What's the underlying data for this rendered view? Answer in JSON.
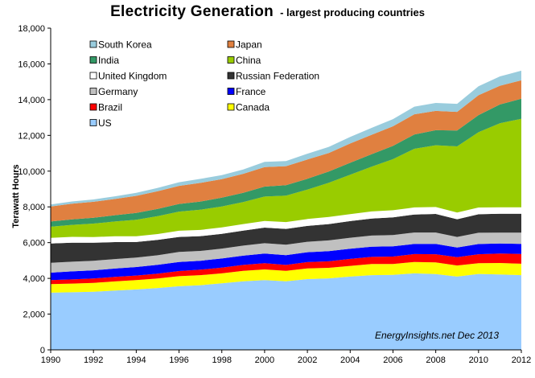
{
  "title": "Electricity  Generation",
  "subtitle": "- largest producing countries",
  "credit": "EnergyInsights.net  Dec 2013",
  "chart_data": {
    "type": "area",
    "stacked": true,
    "ylabel": "Terawatt Hours",
    "xlabel": "",
    "x": [
      1990,
      1991,
      1992,
      1993,
      1994,
      1995,
      1996,
      1997,
      1998,
      1999,
      2000,
      2001,
      2002,
      2003,
      2004,
      2005,
      2006,
      2007,
      2008,
      2009,
      2010,
      2011,
      2012
    ],
    "x_ticks": [
      "1990",
      "1992",
      "1994",
      "1996",
      "1998",
      "2000",
      "2002",
      "2004",
      "2006",
      "2008",
      "2010",
      "2012"
    ],
    "y_ticks": [
      "0",
      "2,000",
      "4,000",
      "6,000",
      "8,000",
      "10,000",
      "12,000",
      "14,000",
      "16,000",
      "18,000"
    ],
    "xlim": [
      1990,
      2012
    ],
    "ylim": [
      0,
      18000
    ],
    "grid": false,
    "legend_position": "top-left",
    "series": [
      {
        "name": "US",
        "color": "#99ccff",
        "values": [
          3200,
          3220,
          3250,
          3320,
          3380,
          3460,
          3560,
          3620,
          3720,
          3840,
          3900,
          3840,
          3960,
          4000,
          4100,
          4180,
          4200,
          4280,
          4240,
          4100,
          4250,
          4220,
          4180
        ]
      },
      {
        "name": "Canada",
        "color": "#ffff00",
        "values": [
          480,
          490,
          500,
          510,
          520,
          530,
          560,
          560,
          560,
          580,
          600,
          580,
          600,
          590,
          600,
          620,
          600,
          640,
          650,
          620,
          600,
          640,
          640
        ]
      },
      {
        "name": "Brazil",
        "color": "#ff0000",
        "values": [
          220,
          230,
          240,
          250,
          260,
          275,
          290,
          305,
          320,
          330,
          350,
          330,
          350,
          365,
          390,
          400,
          420,
          440,
          460,
          470,
          500,
          530,
          550
        ]
      },
      {
        "name": "France",
        "color": "#0000ff",
        "values": [
          420,
          450,
          460,
          470,
          475,
          490,
          510,
          500,
          510,
          520,
          540,
          545,
          555,
          565,
          570,
          575,
          570,
          565,
          575,
          535,
          570,
          560,
          560
        ]
      },
      {
        "name": "Germany",
        "color": "#c0c0c0",
        "values": [
          550,
          540,
          535,
          530,
          530,
          535,
          555,
          550,
          555,
          560,
          575,
          585,
          585,
          605,
          615,
          620,
          635,
          640,
          640,
          595,
          630,
          610,
          630
        ]
      },
      {
        "name": "Russian Federation",
        "color": "#333333",
        "values": [
          1080,
          1070,
          1010,
          950,
          870,
          860,
          845,
          830,
          830,
          845,
          875,
          890,
          885,
          915,
          930,
          955,
          990,
          1010,
          1040,
          990,
          1035,
          1055,
          1060
        ]
      },
      {
        "name": "United Kingdom",
        "color": "#ffffff",
        "values": [
          320,
          322,
          320,
          322,
          323,
          330,
          345,
          345,
          360,
          365,
          375,
          380,
          385,
          395,
          390,
          395,
          395,
          395,
          385,
          375,
          380,
          365,
          360
        ]
      },
      {
        "name": "China",
        "color": "#99cc00",
        "values": [
          620,
          670,
          750,
          830,
          920,
          1000,
          1070,
          1130,
          1170,
          1230,
          1360,
          1480,
          1650,
          1910,
          2200,
          2500,
          2860,
          3280,
          3460,
          3700,
          4210,
          4700,
          4950
        ]
      },
      {
        "name": "India",
        "color": "#339966",
        "values": [
          290,
          310,
          330,
          350,
          380,
          410,
          430,
          460,
          490,
          520,
          560,
          580,
          600,
          630,
          670,
          700,
          740,
          800,
          840,
          890,
          960,
          1050,
          1120
        ]
      },
      {
        "name": "Japan",
        "color": "#e08040",
        "values": [
          840,
          880,
          890,
          910,
          960,
          990,
          1010,
          1040,
          1040,
          1060,
          1090,
          1070,
          1080,
          1040,
          1080,
          1090,
          1100,
          1130,
          1080,
          1040,
          1110,
          1050,
          1030
        ]
      },
      {
        "name": "South Korea",
        "color": "#99ccdd",
        "values": [
          110,
          120,
          130,
          150,
          165,
          185,
          205,
          225,
          220,
          245,
          290,
          285,
          325,
          345,
          365,
          385,
          400,
          430,
          445,
          450,
          500,
          520,
          540
        ]
      }
    ]
  }
}
